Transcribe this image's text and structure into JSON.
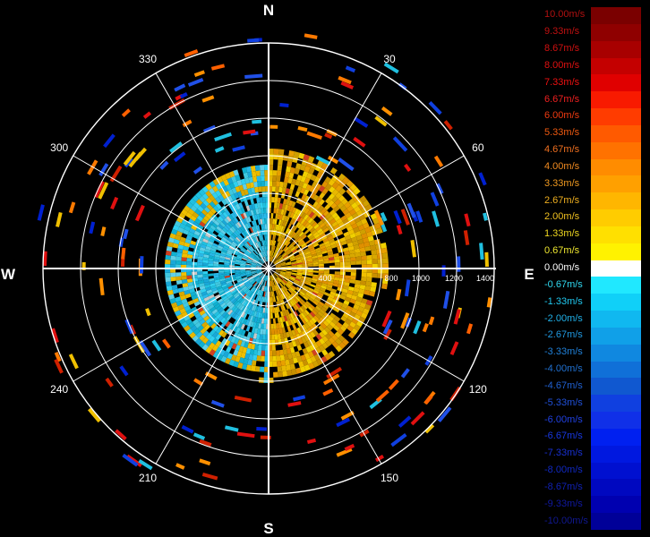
{
  "radar": {
    "cardinals": {
      "north": "N",
      "east": "E",
      "south": "S",
      "west": "W"
    },
    "azimuth_labels": [
      {
        "deg": 30,
        "text": "30"
      },
      {
        "deg": 60,
        "text": "60"
      },
      {
        "deg": 120,
        "text": "120"
      },
      {
        "deg": 150,
        "text": "150"
      },
      {
        "deg": 210,
        "text": "210"
      },
      {
        "deg": 240,
        "text": "240"
      },
      {
        "deg": 300,
        "text": "300"
      },
      {
        "deg": 330,
        "text": "330"
      }
    ],
    "range_labels": [
      "400",
      "800",
      "1000",
      "1200",
      "1400"
    ],
    "colors": {
      "background": "#000000",
      "grid": "#ffffff"
    }
  },
  "legend": {
    "entries": [
      {
        "label": "10.00m/s",
        "color": "#7a0000",
        "text_color": "#b01010"
      },
      {
        "label": "9.33m/s",
        "color": "#8f0000",
        "text_color": "#c01010"
      },
      {
        "label": "8.67m/s",
        "color": "#a80000",
        "text_color": "#d01010"
      },
      {
        "label": "8.00m/s",
        "color": "#c40000",
        "text_color": "#e01010"
      },
      {
        "label": "7.33m/s",
        "color": "#e00000",
        "text_color": "#ee1010"
      },
      {
        "label": "6.67m/s",
        "color": "#f81a00",
        "text_color": "#f02020"
      },
      {
        "label": "6.00m/s",
        "color": "#ff3c00",
        "text_color": "#f03a10"
      },
      {
        "label": "5.33m/s",
        "color": "#ff5a00",
        "text_color": "#f05a10"
      },
      {
        "label": "4.67m/s",
        "color": "#ff7200",
        "text_color": "#f07020"
      },
      {
        "label": "4.00m/s",
        "color": "#ff8c00",
        "text_color": "#f08a20"
      },
      {
        "label": "3.33m/s",
        "color": "#ffa000",
        "text_color": "#f09a20"
      },
      {
        "label": "2.67m/s",
        "color": "#ffb600",
        "text_color": "#f0b020"
      },
      {
        "label": "2.00m/s",
        "color": "#ffcc00",
        "text_color": "#f0c020"
      },
      {
        "label": "1.33m/s",
        "color": "#ffe000",
        "text_color": "#f0d820"
      },
      {
        "label": "0.67m/s",
        "color": "#fff200",
        "text_color": "#f0e830"
      },
      {
        "label": "0.00m/s",
        "color": "#ffffff",
        "text_color": "#ffffff"
      },
      {
        "label": "-0.67m/s",
        "color": "#20e8ff",
        "text_color": "#30d8f0"
      },
      {
        "label": "-1.33m/s",
        "color": "#10d0f8",
        "text_color": "#20c8f0"
      },
      {
        "label": "-2.00m/s",
        "color": "#10b8f0",
        "text_color": "#20b0e8"
      },
      {
        "label": "-2.67m/s",
        "color": "#10a0e8",
        "text_color": "#2098e0"
      },
      {
        "label": "-3.33m/s",
        "color": "#1088e0",
        "text_color": "#2080d8"
      },
      {
        "label": "-4.00m/s",
        "color": "#1070d8",
        "text_color": "#2070d0"
      },
      {
        "label": "-4.67m/s",
        "color": "#1058d0",
        "text_color": "#2060d0"
      },
      {
        "label": "-5.33m/s",
        "color": "#1040e0",
        "text_color": "#2050d8"
      },
      {
        "label": "-6.00m/s",
        "color": "#1030e8",
        "text_color": "#2040e0"
      },
      {
        "label": "-6.67m/s",
        "color": "#0020f0",
        "text_color": "#1838e0"
      },
      {
        "label": "-7.33m/s",
        "color": "#0018e0",
        "text_color": "#1830d0"
      },
      {
        "label": "-8.00m/s",
        "color": "#0010d0",
        "text_color": "#1028c0"
      },
      {
        "label": "-8.67m/s",
        "color": "#0008c0",
        "text_color": "#1020b0"
      },
      {
        "label": "-9.33m/s",
        "color": "#0000b0",
        "text_color": "#1018a0"
      },
      {
        "label": "-10.00m/s",
        "color": "#000098",
        "text_color": "#101890"
      }
    ]
  }
}
